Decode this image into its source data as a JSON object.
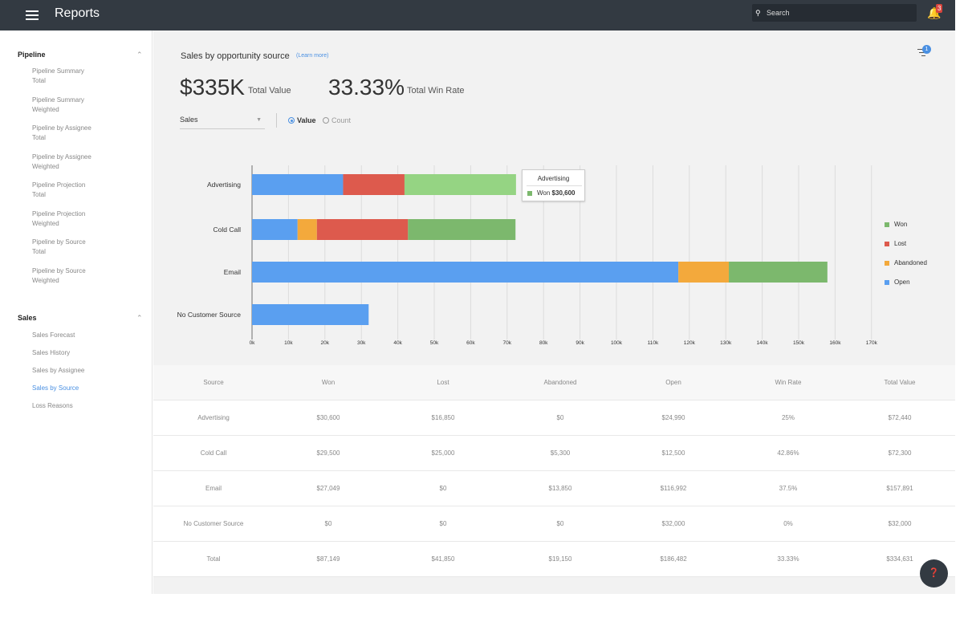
{
  "app": {
    "title": "Reports",
    "notifications": "3"
  },
  "search": {
    "placeholder": "Search"
  },
  "sidebar": {
    "pipeline": {
      "title": "Pipeline",
      "items": [
        {
          "line1": "Pipeline Summary",
          "line2": "Total"
        },
        {
          "line1": "Pipeline Summary",
          "line2": "Weighted"
        },
        {
          "line1": "Pipeline by Assignee",
          "line2": "Total"
        },
        {
          "line1": "Pipeline by Assignee",
          "line2": "Weighted"
        },
        {
          "line1": "Pipeline Projection",
          "line2": "Total"
        },
        {
          "line1": "Pipeline Projection",
          "line2": "Weighted"
        },
        {
          "line1": "Pipeline by Source",
          "line2": "Total"
        },
        {
          "line1": "Pipeline by Source",
          "line2": "Weighted"
        }
      ]
    },
    "sales": {
      "title": "Sales",
      "items": [
        "Sales Forecast",
        "Sales History",
        "Sales by Assignee",
        "Sales by Source",
        "Loss Reasons"
      ],
      "active_index": 3
    }
  },
  "report": {
    "title": "Sales by opportunity source",
    "learn_more": "(Learn more)",
    "filter_badge": "1",
    "total_value": "$335K",
    "total_value_label": "Total Value",
    "win_rate": "33.33%",
    "win_rate_label": "Total Win Rate",
    "metric_select": "Sales",
    "radio_value": "Value",
    "radio_count": "Count",
    "radio_selected": "Value"
  },
  "tooltip": {
    "title": "Advertising",
    "label": "Won",
    "value": "$30,600"
  },
  "chart_data": {
    "type": "bar",
    "orientation": "horizontal",
    "stacked": true,
    "categories": [
      "Advertising",
      "Cold Call",
      "Email",
      "No Customer Source"
    ],
    "series": [
      {
        "name": "Open",
        "color": "#5a9ff0",
        "values": [
          24990,
          12500,
          116992,
          32000
        ]
      },
      {
        "name": "Abandoned",
        "color": "#f3a93c",
        "values": [
          0,
          5300,
          13850,
          0
        ]
      },
      {
        "name": "Lost",
        "color": "#dd5a4d",
        "values": [
          16850,
          25000,
          0,
          0
        ]
      },
      {
        "name": "Won",
        "color": "#7cb86d",
        "values": [
          30600,
          29500,
          27049,
          0
        ]
      }
    ],
    "legend_order": [
      "Won",
      "Lost",
      "Abandoned",
      "Open"
    ],
    "xlim": [
      0,
      170000
    ],
    "ticks": [
      "0k",
      "10k",
      "20k",
      "30k",
      "40k",
      "50k",
      "60k",
      "70k",
      "80k",
      "90k",
      "100k",
      "110k",
      "120k",
      "130k",
      "140k",
      "150k",
      "160k",
      "170k"
    ],
    "grid": true,
    "legend_position": "right",
    "highlight": {
      "category": "Advertising",
      "series": "Won",
      "color": "#95d483"
    }
  },
  "table": {
    "headers": [
      "Source",
      "Won",
      "Lost",
      "Abandoned",
      "Open",
      "Win Rate",
      "Total Value"
    ],
    "rows": [
      [
        "Advertising",
        "$30,600",
        "$16,850",
        "$0",
        "$24,990",
        "25%",
        "$72,440"
      ],
      [
        "Cold Call",
        "$29,500",
        "$25,000",
        "$5,300",
        "$12,500",
        "42.86%",
        "$72,300"
      ],
      [
        "Email",
        "$27,049",
        "$0",
        "$13,850",
        "$116,992",
        "37.5%",
        "$157,891"
      ],
      [
        "No Customer Source",
        "$0",
        "$0",
        "$0",
        "$32,000",
        "0%",
        "$32,000"
      ],
      [
        "Total",
        "$87,149",
        "$41,850",
        "$19,150",
        "$186,482",
        "33.33%",
        "$334,631"
      ]
    ]
  },
  "icons": {
    "menu": "menu-icon",
    "search": "search-icon",
    "bell": "bell-icon",
    "filter": "filter-icon",
    "help": "help-icon",
    "caret": "chevron-up-icon"
  }
}
